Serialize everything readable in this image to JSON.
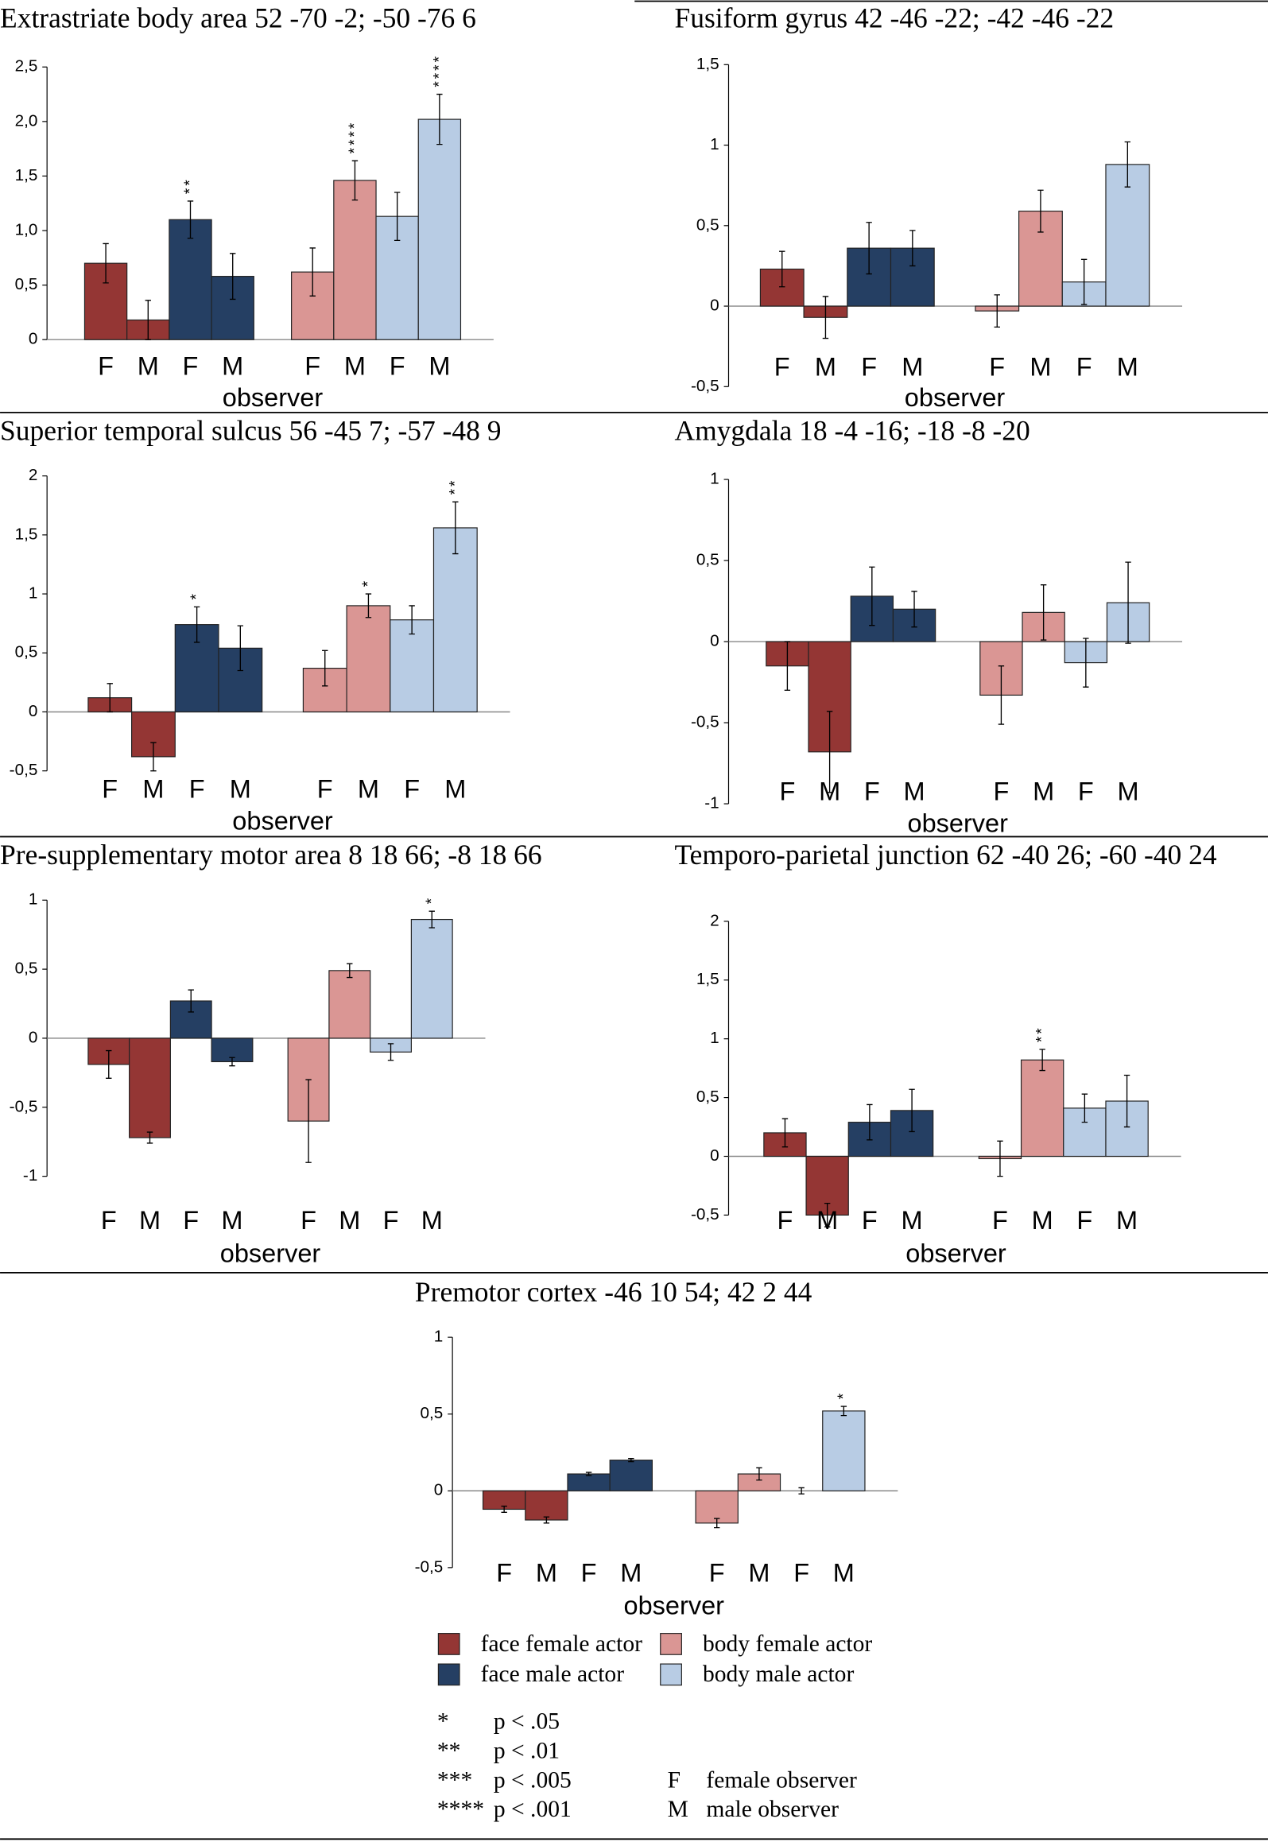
{
  "chart_data": [
    {
      "type": "bar",
      "title": "Extrastriate body area 52 -70 -2; -50 -76 6",
      "xlabel": "observer",
      "categories": [
        "F",
        "M"
      ],
      "ylim": [
        0,
        2.5
      ],
      "yticks": [
        0,
        {
          "value": 0.5,
          "label": "0,5"
        },
        {
          "value": 1,
          "label": "1,0"
        },
        {
          "value": 1.5,
          "label": "1,5"
        },
        {
          "value": 2,
          "label": "2,0"
        },
        {
          "value": 2.5,
          "label": "2,5"
        }
      ],
      "series": [
        {
          "values": [
            0.7,
            0.18
          ],
          "errors": [
            0.18,
            0.18
          ]
        },
        {
          "values": [
            1.1,
            0.58
          ],
          "errors": [
            0.17,
            0.21
          ],
          "stars": [
            "**",
            null
          ]
        },
        {
          "values": [
            0.62,
            1.46
          ],
          "errors": [
            0.22,
            0.18
          ],
          "stars": [
            null,
            "****"
          ]
        },
        {
          "values": [
            1.13,
            2.02
          ],
          "errors": [
            0.22,
            0.23
          ],
          "stars": [
            null,
            "****"
          ]
        }
      ]
    },
    {
      "type": "bar",
      "title": "Fusiform gyrus 42 -46 -22; -42 -46 -22",
      "xlabel": "observer",
      "categories": [
        "F",
        "M"
      ],
      "ylim": [
        -0.5,
        1.5
      ],
      "yticks": [
        {
          "value": -0.5,
          "label": "-0,5"
        },
        0,
        {
          "value": 0.5,
          "label": "0,5"
        },
        1,
        {
          "value": 1.5,
          "label": "1,5"
        }
      ],
      "series": [
        {
          "values": [
            0.23,
            -0.07
          ],
          "errors": [
            0.11,
            0.13
          ]
        },
        {
          "values": [
            0.36,
            0.36
          ],
          "errors": [
            0.16,
            0.11
          ]
        },
        {
          "values": [
            -0.03,
            0.59
          ],
          "errors": [
            0.1,
            0.13
          ]
        },
        {
          "values": [
            0.15,
            0.88
          ],
          "errors": [
            0.14,
            0.14
          ]
        }
      ]
    },
    {
      "type": "bar",
      "title": "Superior temporal sulcus 56 -45 7; -57 -48 9",
      "xlabel": "observer",
      "categories": [
        "F",
        "M"
      ],
      "ylim": [
        -0.5,
        2
      ],
      "yticks": [
        {
          "value": -0.5,
          "label": "-0,5"
        },
        0,
        {
          "value": 0.5,
          "label": "0,5"
        },
        1,
        {
          "value": 1.5,
          "label": "1,5"
        },
        2
      ],
      "series": [
        {
          "values": [
            0.12,
            -0.38
          ],
          "errors": [
            0.12,
            0.12
          ]
        },
        {
          "values": [
            0.74,
            0.54
          ],
          "errors": [
            0.15,
            0.19
          ],
          "stars": [
            "*",
            null
          ]
        },
        {
          "values": [
            0.37,
            0.9
          ],
          "errors": [
            0.15,
            0.1
          ],
          "stars": [
            null,
            "*"
          ]
        },
        {
          "values": [
            0.78,
            1.56
          ],
          "errors": [
            0.12,
            0.22
          ],
          "stars": [
            null,
            "**"
          ]
        }
      ]
    },
    {
      "type": "bar",
      "title": "Amygdala 18 -4 -16; -18 -8 -20",
      "xlabel": "observer",
      "categories": [
        "F",
        "M"
      ],
      "ylim": [
        -1,
        1
      ],
      "yticks": [
        -1,
        {
          "value": -0.5,
          "label": "-0,5"
        },
        0,
        {
          "value": 0.5,
          "label": "0,5"
        },
        1
      ],
      "series": [
        {
          "values": [
            -0.15,
            -0.68
          ],
          "errors": [
            0.15,
            0.25
          ]
        },
        {
          "values": [
            0.28,
            0.2
          ],
          "errors": [
            0.18,
            0.11
          ]
        },
        {
          "values": [
            -0.33,
            0.18
          ],
          "errors": [
            0.18,
            0.17
          ]
        },
        {
          "values": [
            -0.13,
            0.24
          ],
          "errors": [
            0.15,
            0.25
          ]
        }
      ]
    },
    {
      "type": "bar",
      "title": "Pre-supplementary motor area 8 18 66; -8 18 66",
      "xlabel": "observer",
      "categories": [
        "F",
        "M"
      ],
      "ylim": [
        -1,
        1
      ],
      "yticks": [
        -1,
        {
          "value": -0.5,
          "label": "-0,5"
        },
        0,
        {
          "value": 0.5,
          "label": "0,5"
        },
        1
      ],
      "series": [
        {
          "values": [
            -0.19,
            -0.72
          ],
          "errors": [
            0.1,
            0.04
          ]
        },
        {
          "values": [
            0.27,
            -0.17
          ],
          "errors": [
            0.08,
            0.03
          ]
        },
        {
          "values": [
            -0.6,
            0.49
          ],
          "errors": [
            0.3,
            0.05
          ]
        },
        {
          "values": [
            -0.1,
            0.86
          ],
          "errors": [
            0.06,
            0.06
          ],
          "stars": [
            null,
            "*"
          ]
        }
      ]
    },
    {
      "type": "bar",
      "title": "Temporo-parietal junction 62 -40 26; -60 -40 24",
      "xlabel": "observer",
      "categories": [
        "F",
        "M"
      ],
      "ylim": [
        -0.5,
        2
      ],
      "yticks": [
        {
          "value": -0.5,
          "label": "-0,5"
        },
        0,
        {
          "value": 0.5,
          "label": "0,5"
        },
        1,
        {
          "value": 1.5,
          "label": "1,5"
        },
        2
      ],
      "series": [
        {
          "values": [
            0.2,
            -0.5
          ],
          "errors": [
            0.12,
            0.1
          ]
        },
        {
          "values": [
            0.29,
            0.39
          ],
          "errors": [
            0.15,
            0.18
          ]
        },
        {
          "values": [
            -0.02,
            0.82
          ],
          "errors": [
            0.15,
            0.09
          ],
          "stars": [
            null,
            "**"
          ]
        },
        {
          "values": [
            0.41,
            0.47
          ],
          "errors": [
            0.12,
            0.22
          ]
        }
      ]
    },
    {
      "type": "bar",
      "title": "Premotor cortex -46 10 54; 42 2 44",
      "xlabel": "observer",
      "categories": [
        "F",
        "M"
      ],
      "ylim": [
        -0.5,
        1
      ],
      "yticks": [
        {
          "value": -0.5,
          "label": "-0,5"
        },
        0,
        {
          "value": 0.5,
          "label": "0,5"
        },
        1
      ],
      "series": [
        {
          "values": [
            -0.12,
            -0.19
          ],
          "errors": [
            0.02,
            0.02
          ]
        },
        {
          "values": [
            0.11,
            0.2
          ],
          "errors": [
            0.01,
            0.01
          ]
        },
        {
          "values": [
            -0.21,
            0.11
          ],
          "errors": [
            0.03,
            0.04
          ]
        },
        {
          "values": [
            0,
            0.52
          ],
          "errors": [
            0.02,
            0.03
          ],
          "stars": [
            null,
            "*"
          ]
        }
      ]
    }
  ],
  "legend": {
    "items": [
      {
        "name": "face female actor",
        "color": "#943634"
      },
      {
        "name": "face male actor",
        "color": "#253f63"
      },
      {
        "name": "body female actor",
        "color": "#da9694"
      },
      {
        "name": "body male actor",
        "color": "#b8cce4"
      }
    ],
    "significance": [
      {
        "symbol": "*",
        "label": "p < .05"
      },
      {
        "symbol": "**",
        "label": "p < .01"
      },
      {
        "symbol": "***",
        "label": "p < .005"
      },
      {
        "symbol": "****",
        "label": "p < .001"
      }
    ],
    "observers": [
      {
        "symbol": "F",
        "label": "female observer"
      },
      {
        "symbol": "M",
        "label": "male observer"
      }
    ]
  }
}
